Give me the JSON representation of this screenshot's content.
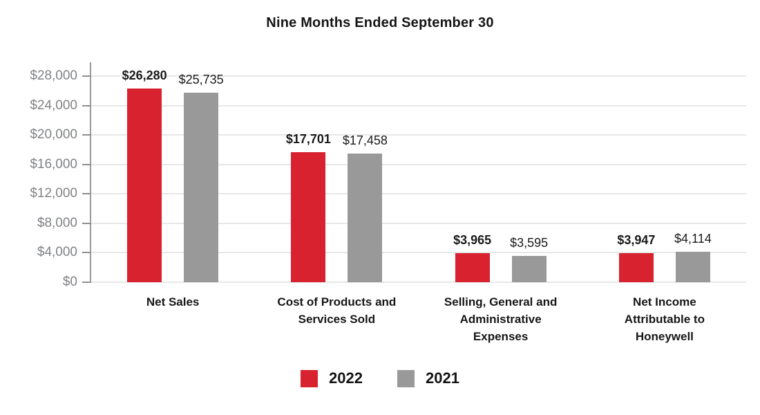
{
  "chart_data": {
    "type": "bar",
    "title": "Nine Months Ended September 30",
    "categories": [
      "Net Sales",
      "Cost of Products and Services Sold",
      "Selling, General and Administrative Expenses",
      "Net Income Attributable to Honeywell"
    ],
    "category_lines": [
      [
        "Net Sales"
      ],
      [
        "Cost of Products and",
        "Services Sold"
      ],
      [
        "Selling, General and",
        "Administrative",
        "Expenses"
      ],
      [
        "Net Income",
        "Attributable to",
        "Honeywell"
      ]
    ],
    "series": [
      {
        "name": "2022",
        "color": "#d8222f",
        "values": [
          26280,
          17701,
          3965,
          3947
        ],
        "labels": [
          "$26,280",
          "$17,701",
          "$3,965",
          "$3,947"
        ],
        "emphasis": "bold"
      },
      {
        "name": "2021",
        "color": "#9a999a",
        "values": [
          25735,
          17458,
          3595,
          4114
        ],
        "labels": [
          "$25,735",
          "$17,458",
          "$3,595",
          "$4,114"
        ],
        "emphasis": "normal"
      }
    ],
    "y_axis": {
      "min": 0,
      "max": 28000,
      "step": 4000,
      "tick_labels": [
        "$0",
        "$4,000",
        "$8,000",
        "$12,000",
        "$16,000",
        "$20,000",
        "$24,000",
        "$28,000"
      ]
    },
    "grid": true,
    "legend_position": "bottom",
    "colors": {
      "gridline": "#e7e7e7",
      "axis": "#9a9a9a",
      "tick_label": "#808285",
      "text": "#141414"
    }
  }
}
